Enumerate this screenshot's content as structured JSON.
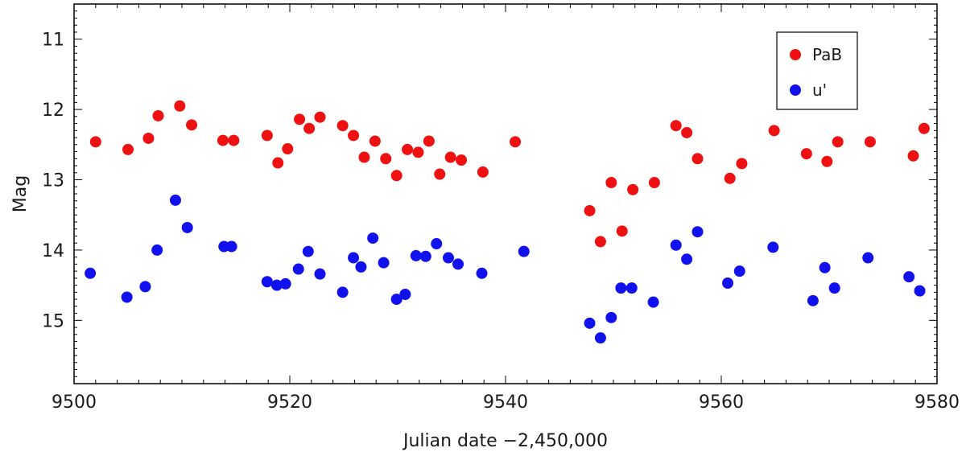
{
  "chart_data": {
    "type": "scatter",
    "xlabel": "Julian date −2,450,000",
    "ylabel": "Mag",
    "xlim": [
      9500,
      9580
    ],
    "ylim": [
      15.9,
      10.5
    ],
    "y_inverted": true,
    "x_ticks": [
      "9500",
      "9520",
      "9540",
      "9560",
      "9580"
    ],
    "y_ticks": [
      "11",
      "12",
      "13",
      "14",
      "15"
    ],
    "grid": false,
    "legend": "top-right",
    "series": [
      {
        "name": "PaB",
        "color": "#ee1111",
        "points": [
          [
            9502.0,
            12.46
          ],
          [
            9505.0,
            12.57
          ],
          [
            9506.9,
            12.41
          ],
          [
            9507.8,
            12.09
          ],
          [
            9509.8,
            11.95
          ],
          [
            9510.9,
            12.22
          ],
          [
            9513.8,
            12.44
          ],
          [
            9514.8,
            12.44
          ],
          [
            9517.9,
            12.37
          ],
          [
            9518.9,
            12.76
          ],
          [
            9519.8,
            12.56
          ],
          [
            9520.9,
            12.14
          ],
          [
            9521.8,
            12.27
          ],
          [
            9522.8,
            12.11
          ],
          [
            9524.9,
            12.23
          ],
          [
            9525.9,
            12.37
          ],
          [
            9526.9,
            12.68
          ],
          [
            9527.9,
            12.45
          ],
          [
            9528.9,
            12.7
          ],
          [
            9529.9,
            12.94
          ],
          [
            9530.9,
            12.57
          ],
          [
            9531.9,
            12.61
          ],
          [
            9532.9,
            12.45
          ],
          [
            9533.9,
            12.92
          ],
          [
            9534.9,
            12.68
          ],
          [
            9535.9,
            12.72
          ],
          [
            9537.9,
            12.89
          ],
          [
            9540.9,
            12.46
          ],
          [
            9547.8,
            13.44
          ],
          [
            9548.8,
            13.88
          ],
          [
            9549.8,
            13.04
          ],
          [
            9550.8,
            13.73
          ],
          [
            9551.8,
            13.14
          ],
          [
            9553.8,
            13.04
          ],
          [
            9555.8,
            12.23
          ],
          [
            9556.8,
            12.33
          ],
          [
            9557.8,
            12.7
          ],
          [
            9560.8,
            12.98
          ],
          [
            9561.9,
            12.77
          ],
          [
            9564.9,
            12.3
          ],
          [
            9567.9,
            12.63
          ],
          [
            9569.8,
            12.74
          ],
          [
            9570.8,
            12.46
          ],
          [
            9573.8,
            12.46
          ],
          [
            9577.8,
            12.66
          ],
          [
            9578.8,
            12.27
          ]
        ]
      },
      {
        "name": "u'",
        "color": "#1111ee",
        "points": [
          [
            9501.5,
            14.33
          ],
          [
            9504.9,
            14.67
          ],
          [
            9506.6,
            14.52
          ],
          [
            9507.7,
            14.0
          ],
          [
            9509.4,
            13.29
          ],
          [
            9510.5,
            13.68
          ],
          [
            9513.9,
            13.95
          ],
          [
            9514.6,
            13.95
          ],
          [
            9517.9,
            14.45
          ],
          [
            9518.8,
            14.5
          ],
          [
            9519.6,
            14.48
          ],
          [
            9520.8,
            14.27
          ],
          [
            9521.7,
            14.02
          ],
          [
            9522.8,
            14.34
          ],
          [
            9524.9,
            14.6
          ],
          [
            9525.9,
            14.11
          ],
          [
            9526.6,
            14.24
          ],
          [
            9527.7,
            13.83
          ],
          [
            9528.7,
            14.18
          ],
          [
            9529.9,
            14.7
          ],
          [
            9530.7,
            14.63
          ],
          [
            9531.7,
            14.08
          ],
          [
            9532.6,
            14.09
          ],
          [
            9533.6,
            13.91
          ],
          [
            9534.7,
            14.11
          ],
          [
            9535.6,
            14.2
          ],
          [
            9537.8,
            14.33
          ],
          [
            9541.7,
            14.02
          ],
          [
            9547.8,
            15.04
          ],
          [
            9548.8,
            15.25
          ],
          [
            9549.8,
            14.96
          ],
          [
            9550.7,
            14.54
          ],
          [
            9551.7,
            14.54
          ],
          [
            9553.7,
            14.74
          ],
          [
            9555.8,
            13.93
          ],
          [
            9556.8,
            14.13
          ],
          [
            9557.8,
            13.74
          ],
          [
            9560.6,
            14.47
          ],
          [
            9561.7,
            14.3
          ],
          [
            9564.8,
            13.96
          ],
          [
            9568.5,
            14.72
          ],
          [
            9569.6,
            14.25
          ],
          [
            9570.5,
            14.54
          ],
          [
            9573.6,
            14.11
          ],
          [
            9577.4,
            14.38
          ],
          [
            9578.4,
            14.58
          ]
        ]
      }
    ]
  }
}
